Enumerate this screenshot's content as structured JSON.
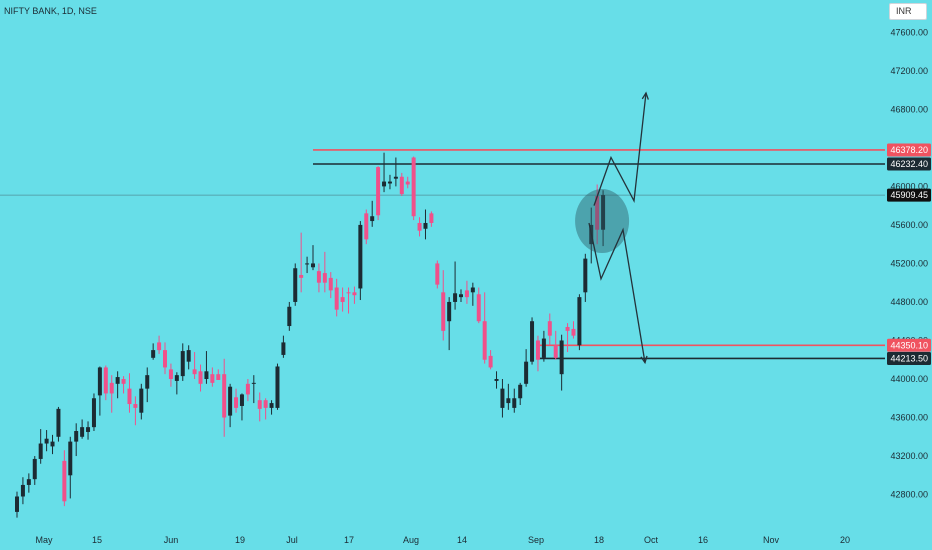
{
  "header": {
    "symbol_info": "NIFTY BANK, 1D, NSE",
    "currency": "INR"
  },
  "chart_data": {
    "type": "candlestick",
    "title": "NIFTY BANK, 1D, NSE",
    "ylim": [
      42500,
      47850
    ],
    "y_ticks": [
      47600,
      47200,
      46800,
      46400,
      46000,
      45600,
      45200,
      44800,
      44400,
      44000,
      43600,
      43200,
      42800
    ],
    "y_tick_labels": [
      "47600.00",
      "47200.00",
      "46800.00",
      "46400.00",
      "46000.00",
      "45600.00",
      "45200.00",
      "44800.00",
      "44400.00",
      "44000.00",
      "43600.00",
      "43200.00",
      "42800.00"
    ],
    "x_tick_labels": [
      "May",
      "15",
      "Jun",
      "19",
      "Jul",
      "17",
      "Aug",
      "14",
      "Sep",
      "18",
      "Oct",
      "16",
      "Nov",
      "20"
    ],
    "candles": [
      {
        "open": 42620,
        "high": 42830,
        "low": 42560,
        "close": 42780,
        "color": "dark"
      },
      {
        "open": 42780,
        "high": 42980,
        "low": 42700,
        "close": 42900,
        "color": "dark"
      },
      {
        "open": 42900,
        "high": 43020,
        "low": 42820,
        "close": 42960,
        "color": "dark"
      },
      {
        "open": 42960,
        "high": 43200,
        "low": 42900,
        "close": 43170,
        "color": "dark"
      },
      {
        "open": 43170,
        "high": 43480,
        "low": 43120,
        "close": 43330,
        "color": "dark"
      },
      {
        "open": 43330,
        "high": 43470,
        "low": 43250,
        "close": 43380,
        "color": "dark"
      },
      {
        "open": 43300,
        "high": 43420,
        "low": 43220,
        "close": 43350,
        "color": "dark"
      },
      {
        "open": 43400,
        "high": 43710,
        "low": 43350,
        "close": 43690,
        "color": "dark"
      },
      {
        "open": 43150,
        "high": 43260,
        "low": 42680,
        "close": 42730,
        "color": "pink"
      },
      {
        "open": 43000,
        "high": 43400,
        "low": 42760,
        "close": 43350,
        "color": "dark"
      },
      {
        "open": 43350,
        "high": 43540,
        "low": 43200,
        "close": 43460,
        "color": "dark"
      },
      {
        "open": 43400,
        "high": 43580,
        "low": 43380,
        "close": 43500,
        "color": "dark"
      },
      {
        "open": 43450,
        "high": 43560,
        "low": 43370,
        "close": 43500,
        "color": "dark"
      },
      {
        "open": 43500,
        "high": 43850,
        "low": 43460,
        "close": 43800,
        "color": "dark"
      },
      {
        "open": 43830,
        "high": 44130,
        "low": 43620,
        "close": 44120,
        "color": "dark"
      },
      {
        "open": 44120,
        "high": 44140,
        "low": 43780,
        "close": 43850,
        "color": "pink"
      },
      {
        "open": 43850,
        "high": 44040,
        "low": 43650,
        "close": 43960,
        "color": "pink"
      },
      {
        "open": 43950,
        "high": 44080,
        "low": 43800,
        "close": 44020,
        "color": "dark"
      },
      {
        "open": 44000,
        "high": 44030,
        "low": 43850,
        "close": 43950,
        "color": "pink"
      },
      {
        "open": 43900,
        "high": 44060,
        "low": 43650,
        "close": 43740,
        "color": "pink"
      },
      {
        "open": 43740,
        "high": 43820,
        "low": 43520,
        "close": 43700,
        "color": "pink"
      },
      {
        "open": 43650,
        "high": 43950,
        "low": 43580,
        "close": 43900,
        "color": "dark"
      },
      {
        "open": 43900,
        "high": 44120,
        "low": 43760,
        "close": 44040,
        "color": "dark"
      },
      {
        "open": 44220,
        "high": 44370,
        "low": 44200,
        "close": 44300,
        "color": "dark"
      },
      {
        "open": 44380,
        "high": 44450,
        "low": 44260,
        "close": 44300,
        "color": "pink"
      },
      {
        "open": 44300,
        "high": 44380,
        "low": 44050,
        "close": 44120,
        "color": "pink"
      },
      {
        "open": 44100,
        "high": 44160,
        "low": 43920,
        "close": 44000,
        "color": "pink"
      },
      {
        "open": 43980,
        "high": 44070,
        "low": 43840,
        "close": 44040,
        "color": "dark"
      },
      {
        "open": 44030,
        "high": 44370,
        "low": 43980,
        "close": 44290,
        "color": "dark"
      },
      {
        "open": 44300,
        "high": 44350,
        "low": 44100,
        "close": 44180,
        "color": "dark"
      },
      {
        "open": 44100,
        "high": 44280,
        "low": 44000,
        "close": 44050,
        "color": "pink"
      },
      {
        "open": 44080,
        "high": 44150,
        "low": 43870,
        "close": 43950,
        "color": "pink"
      },
      {
        "open": 44000,
        "high": 44290,
        "low": 43950,
        "close": 44080,
        "color": "dark"
      },
      {
        "open": 44050,
        "high": 44120,
        "low": 43920,
        "close": 43960,
        "color": "pink"
      },
      {
        "open": 44050,
        "high": 44100,
        "low": 43990,
        "close": 43990,
        "color": "pink"
      },
      {
        "open": 44050,
        "high": 44210,
        "low": 43400,
        "close": 43600,
        "color": "pink"
      },
      {
        "open": 43620,
        "high": 43950,
        "low": 43500,
        "close": 43920,
        "color": "dark"
      },
      {
        "open": 43810,
        "high": 43900,
        "low": 43650,
        "close": 43700,
        "color": "pink"
      },
      {
        "open": 43720,
        "high": 43850,
        "low": 43570,
        "close": 43840,
        "color": "dark"
      },
      {
        "open": 43840,
        "high": 44000,
        "low": 43770,
        "close": 43950,
        "color": "pink"
      },
      {
        "open": 43960,
        "high": 44040,
        "low": 43750,
        "close": 43950,
        "color": "dark"
      },
      {
        "open": 43780,
        "high": 43860,
        "low": 43560,
        "close": 43690,
        "color": "pink"
      },
      {
        "open": 43700,
        "high": 43800,
        "low": 43580,
        "close": 43780,
        "color": "pink"
      },
      {
        "open": 43750,
        "high": 43780,
        "low": 43630,
        "close": 43700,
        "color": "dark"
      },
      {
        "open": 43700,
        "high": 44160,
        "low": 43680,
        "close": 44130,
        "color": "dark"
      },
      {
        "open": 44250,
        "high": 44450,
        "low": 44220,
        "close": 44380,
        "color": "dark"
      },
      {
        "open": 44550,
        "high": 44800,
        "low": 44500,
        "close": 44750,
        "color": "dark"
      },
      {
        "open": 44800,
        "high": 45200,
        "low": 44760,
        "close": 45150,
        "color": "dark"
      },
      {
        "open": 45050,
        "high": 45520,
        "low": 44900,
        "close": 45080,
        "color": "pink"
      },
      {
        "open": 45200,
        "high": 45270,
        "low": 45100,
        "close": 45200,
        "color": "dark"
      },
      {
        "open": 45200,
        "high": 45390,
        "low": 45130,
        "close": 45160,
        "color": "dark"
      },
      {
        "open": 45120,
        "high": 45200,
        "low": 44900,
        "close": 45000,
        "color": "pink"
      },
      {
        "open": 45100,
        "high": 45320,
        "low": 44900,
        "close": 45000,
        "color": "pink"
      },
      {
        "open": 45050,
        "high": 45110,
        "low": 44840,
        "close": 44920,
        "color": "pink"
      },
      {
        "open": 44950,
        "high": 45040,
        "low": 44650,
        "close": 44720,
        "color": "pink"
      },
      {
        "open": 44850,
        "high": 44950,
        "low": 44700,
        "close": 44800,
        "color": "pink"
      },
      {
        "open": 44900,
        "high": 44950,
        "low": 44680,
        "close": 44900,
        "color": "pink"
      },
      {
        "open": 44900,
        "high": 44960,
        "low": 44780,
        "close": 44870,
        "color": "pink"
      },
      {
        "open": 44940,
        "high": 45640,
        "low": 44820,
        "close": 45600,
        "color": "dark"
      },
      {
        "open": 45450,
        "high": 45760,
        "low": 45400,
        "close": 45720,
        "color": "pink"
      },
      {
        "open": 45640,
        "high": 45850,
        "low": 45580,
        "close": 45690,
        "color": "dark"
      },
      {
        "open": 45700,
        "high": 46210,
        "low": 45650,
        "close": 46200,
        "color": "pink"
      },
      {
        "open": 46000,
        "high": 46350,
        "low": 45940,
        "close": 46050,
        "color": "dark"
      },
      {
        "open": 46050,
        "high": 46120,
        "low": 45970,
        "close": 46030,
        "color": "dark"
      },
      {
        "open": 46080,
        "high": 46300,
        "low": 46000,
        "close": 46100,
        "color": "dark"
      },
      {
        "open": 46100,
        "high": 46140,
        "low": 45900,
        "close": 45920,
        "color": "pink"
      },
      {
        "open": 46050,
        "high": 46100,
        "low": 45980,
        "close": 46020,
        "color": "pink"
      },
      {
        "open": 46300,
        "high": 46310,
        "low": 45650,
        "close": 45690,
        "color": "pink"
      },
      {
        "open": 45620,
        "high": 45680,
        "low": 45480,
        "close": 45540,
        "color": "pink"
      },
      {
        "open": 45560,
        "high": 45760,
        "low": 45450,
        "close": 45620,
        "color": "dark"
      },
      {
        "open": 45720,
        "high": 45740,
        "low": 45580,
        "close": 45620,
        "color": "pink"
      },
      {
        "open": 45200,
        "high": 45230,
        "low": 44940,
        "close": 44980,
        "color": "pink"
      },
      {
        "open": 44900,
        "high": 45130,
        "low": 44400,
        "close": 44500,
        "color": "pink"
      },
      {
        "open": 44600,
        "high": 44850,
        "low": 44300,
        "close": 44800,
        "color": "dark"
      },
      {
        "open": 44800,
        "high": 45220,
        "low": 44720,
        "close": 44890,
        "color": "dark"
      },
      {
        "open": 44850,
        "high": 44930,
        "low": 44800,
        "close": 44880,
        "color": "dark"
      },
      {
        "open": 44850,
        "high": 45020,
        "low": 44780,
        "close": 44920,
        "color": "pink"
      },
      {
        "open": 44950,
        "high": 45000,
        "low": 44760,
        "close": 44900,
        "color": "dark"
      },
      {
        "open": 44880,
        "high": 44950,
        "low": 44580,
        "close": 44600,
        "color": "pink"
      },
      {
        "open": 44600,
        "high": 44900,
        "low": 44160,
        "close": 44200,
        "color": "pink"
      },
      {
        "open": 44240,
        "high": 44300,
        "low": 44100,
        "close": 44120,
        "color": "pink"
      },
      {
        "open": 44000,
        "high": 44080,
        "low": 43900,
        "close": 43980,
        "color": "dark"
      },
      {
        "open": 43900,
        "high": 44000,
        "low": 43600,
        "close": 43700,
        "color": "dark"
      },
      {
        "open": 43750,
        "high": 43950,
        "low": 43680,
        "close": 43800,
        "color": "dark"
      },
      {
        "open": 43700,
        "high": 43900,
        "low": 43650,
        "close": 43800,
        "color": "dark"
      },
      {
        "open": 43800,
        "high": 43960,
        "low": 43730,
        "close": 43940,
        "color": "dark"
      },
      {
        "open": 43950,
        "high": 44310,
        "low": 43920,
        "close": 44180,
        "color": "dark"
      },
      {
        "open": 44180,
        "high": 44640,
        "low": 44150,
        "close": 44600,
        "color": "dark"
      },
      {
        "open": 44400,
        "high": 44450,
        "low": 44080,
        "close": 44200,
        "color": "pink"
      },
      {
        "open": 44220,
        "high": 44500,
        "low": 44180,
        "close": 44420,
        "color": "dark"
      },
      {
        "open": 44450,
        "high": 44680,
        "low": 44350,
        "close": 44600,
        "color": "pink"
      },
      {
        "open": 44350,
        "high": 44500,
        "low": 44200,
        "close": 44220,
        "color": "pink"
      },
      {
        "open": 44050,
        "high": 44460,
        "low": 43880,
        "close": 44400,
        "color": "dark"
      },
      {
        "open": 44500,
        "high": 44580,
        "low": 44280,
        "close": 44540,
        "color": "pink"
      },
      {
        "open": 44520,
        "high": 44600,
        "low": 44420,
        "close": 44450,
        "color": "pink"
      },
      {
        "open": 44350,
        "high": 44880,
        "low": 44300,
        "close": 44850,
        "color": "dark"
      },
      {
        "open": 44900,
        "high": 45300,
        "low": 44800,
        "close": 45250,
        "color": "dark"
      },
      {
        "open": 45400,
        "high": 45780,
        "low": 45200,
        "close": 45600,
        "color": "dark"
      },
      {
        "open": 45900,
        "high": 46020,
        "low": 45400,
        "close": 45550,
        "color": "pink"
      },
      {
        "open": 45550,
        "high": 45960,
        "low": 45380,
        "close": 45909.45,
        "color": "dark"
      }
    ],
    "price_levels": [
      {
        "value": 46378.2,
        "label": "46378.20",
        "color": "#f05360"
      },
      {
        "value": 46232.4,
        "label": "46232.40",
        "color": "#1c2b33"
      },
      {
        "value": 45909.45,
        "label": "45909.45",
        "color": "#101010"
      },
      {
        "value": 44350.1,
        "label": "44350.10",
        "color": "#f05360"
      },
      {
        "value": 44213.5,
        "label": "44213.50",
        "color": "#1c2b33"
      }
    ],
    "projection_paths": [
      {
        "name": "bullish",
        "points": [
          [
            45800,
            0
          ],
          [
            46300,
            0
          ],
          [
            45850,
            0
          ],
          [
            46970,
            0
          ]
        ]
      },
      {
        "name": "bearish",
        "points": [
          [
            45620,
            0
          ],
          [
            45040,
            0
          ],
          [
            45550,
            0
          ],
          [
            44170,
            0
          ]
        ]
      }
    ],
    "colors": {
      "background": "#67dee8",
      "bull": "#1c2b33",
      "bear": "#f0508a",
      "resistance": "#f05360"
    }
  }
}
